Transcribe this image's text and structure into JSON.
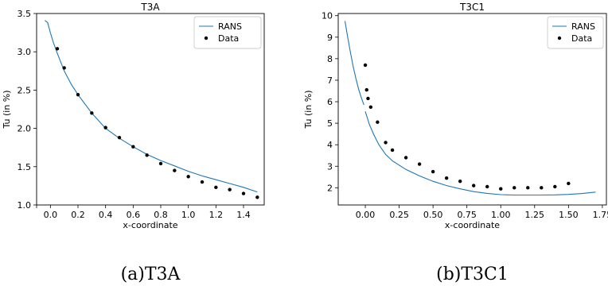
{
  "chart_data": [
    {
      "type": "line",
      "title": "T3A",
      "xlabel": "x-coordinate",
      "ylabel": "Tu (in %)",
      "xlim": [
        -0.1,
        1.55
      ],
      "ylim": [
        1.0,
        3.5
      ],
      "xticks": [
        -0.1,
        0.0,
        0.2,
        0.4,
        0.6,
        0.8,
        1.0,
        1.2,
        1.4
      ],
      "xtick_labels": [
        "",
        "0.0",
        "0.2",
        "0.4",
        "0.6",
        "0.8",
        "1.0",
        "1.2",
        "1.4"
      ],
      "yticks": [
        1.0,
        1.5,
        2.0,
        2.5,
        3.0,
        3.5
      ],
      "ytick_labels": [
        "1.0",
        "1.5",
        "2.0",
        "2.5",
        "3.0",
        "3.5"
      ],
      "legend_position": "top-right",
      "grid": false,
      "caption": "(a)T3A",
      "series": [
        {
          "name": "RANS",
          "kind": "line",
          "color": "#1f77b4",
          "x": [
            -0.04,
            -0.02,
            0.0,
            0.02,
            0.05,
            0.1,
            0.15,
            0.2,
            0.3,
            0.4,
            0.5,
            0.6,
            0.7,
            0.8,
            0.9,
            1.0,
            1.1,
            1.2,
            1.3,
            1.4,
            1.5
          ],
          "y": [
            3.41,
            3.38,
            3.25,
            3.13,
            2.98,
            2.75,
            2.58,
            2.44,
            2.2,
            2.0,
            1.87,
            1.76,
            1.66,
            1.58,
            1.51,
            1.44,
            1.38,
            1.33,
            1.28,
            1.23,
            1.17
          ]
        },
        {
          "name": "Data",
          "kind": "scatter",
          "color": "#000000",
          "x": [
            0.05,
            0.1,
            0.2,
            0.3,
            0.4,
            0.5,
            0.6,
            0.7,
            0.8,
            0.9,
            1.0,
            1.1,
            1.2,
            1.3,
            1.4,
            1.5
          ],
          "y": [
            3.04,
            2.79,
            2.44,
            2.2,
            2.01,
            1.88,
            1.76,
            1.65,
            1.54,
            1.45,
            1.37,
            1.3,
            1.23,
            1.2,
            1.15,
            1.1
          ]
        }
      ]
    },
    {
      "type": "line",
      "title": "T3C1",
      "xlabel": "x-coordinate",
      "ylabel": "Tu (in %)",
      "xlim": [
        -0.2,
        1.78
      ],
      "ylim": [
        1.2,
        10.1
      ],
      "xticks": [
        0.0,
        0.25,
        0.5,
        0.75,
        1.0,
        1.25,
        1.5,
        1.75
      ],
      "xtick_labels": [
        "0.00",
        "0.25",
        "0.50",
        "0.75",
        "1.00",
        "1.25",
        "1.50",
        "1.75"
      ],
      "yticks": [
        2,
        3,
        4,
        5,
        6,
        7,
        8,
        9,
        10
      ],
      "ytick_labels": [
        "2",
        "3",
        "4",
        "5",
        "6",
        "7",
        "8",
        "9",
        "10"
      ],
      "legend_position": "top-right",
      "grid": false,
      "caption": "(b)T3C1",
      "series": [
        {
          "name": "RANS",
          "kind": "line",
          "color": "#1f77b4",
          "segments": [
            {
              "x": [
                -0.15,
                -0.13,
                -0.11,
                -0.09,
                -0.07,
                -0.05,
                -0.03,
                -0.01
              ],
              "y": [
                9.75,
                9.0,
                8.3,
                7.65,
                7.1,
                6.6,
                6.2,
                5.85
              ]
            },
            {
              "x": [
                0.0,
                0.03,
                0.06,
                0.1,
                0.15,
                0.2,
                0.3,
                0.4,
                0.5,
                0.6,
                0.7,
                0.8,
                0.9,
                1.0,
                1.1,
                1.2,
                1.3,
                1.4,
                1.5,
                1.6,
                1.7
              ],
              "y": [
                5.55,
                4.95,
                4.5,
                4.0,
                3.55,
                3.25,
                2.85,
                2.55,
                2.3,
                2.1,
                1.95,
                1.82,
                1.74,
                1.68,
                1.66,
                1.66,
                1.66,
                1.67,
                1.69,
                1.73,
                1.8
              ]
            }
          ]
        },
        {
          "name": "Data",
          "kind": "scatter",
          "color": "#000000",
          "x": [
            0.0,
            0.01,
            0.02,
            0.04,
            0.09,
            0.15,
            0.2,
            0.3,
            0.4,
            0.5,
            0.6,
            0.7,
            0.8,
            0.9,
            1.0,
            1.1,
            1.2,
            1.3,
            1.4,
            1.5
          ],
          "y": [
            7.7,
            6.55,
            6.15,
            5.75,
            5.05,
            4.1,
            3.75,
            3.4,
            3.1,
            2.75,
            2.45,
            2.3,
            2.1,
            2.05,
            1.95,
            2.0,
            2.0,
            2.0,
            2.05,
            2.2
          ]
        }
      ]
    }
  ]
}
